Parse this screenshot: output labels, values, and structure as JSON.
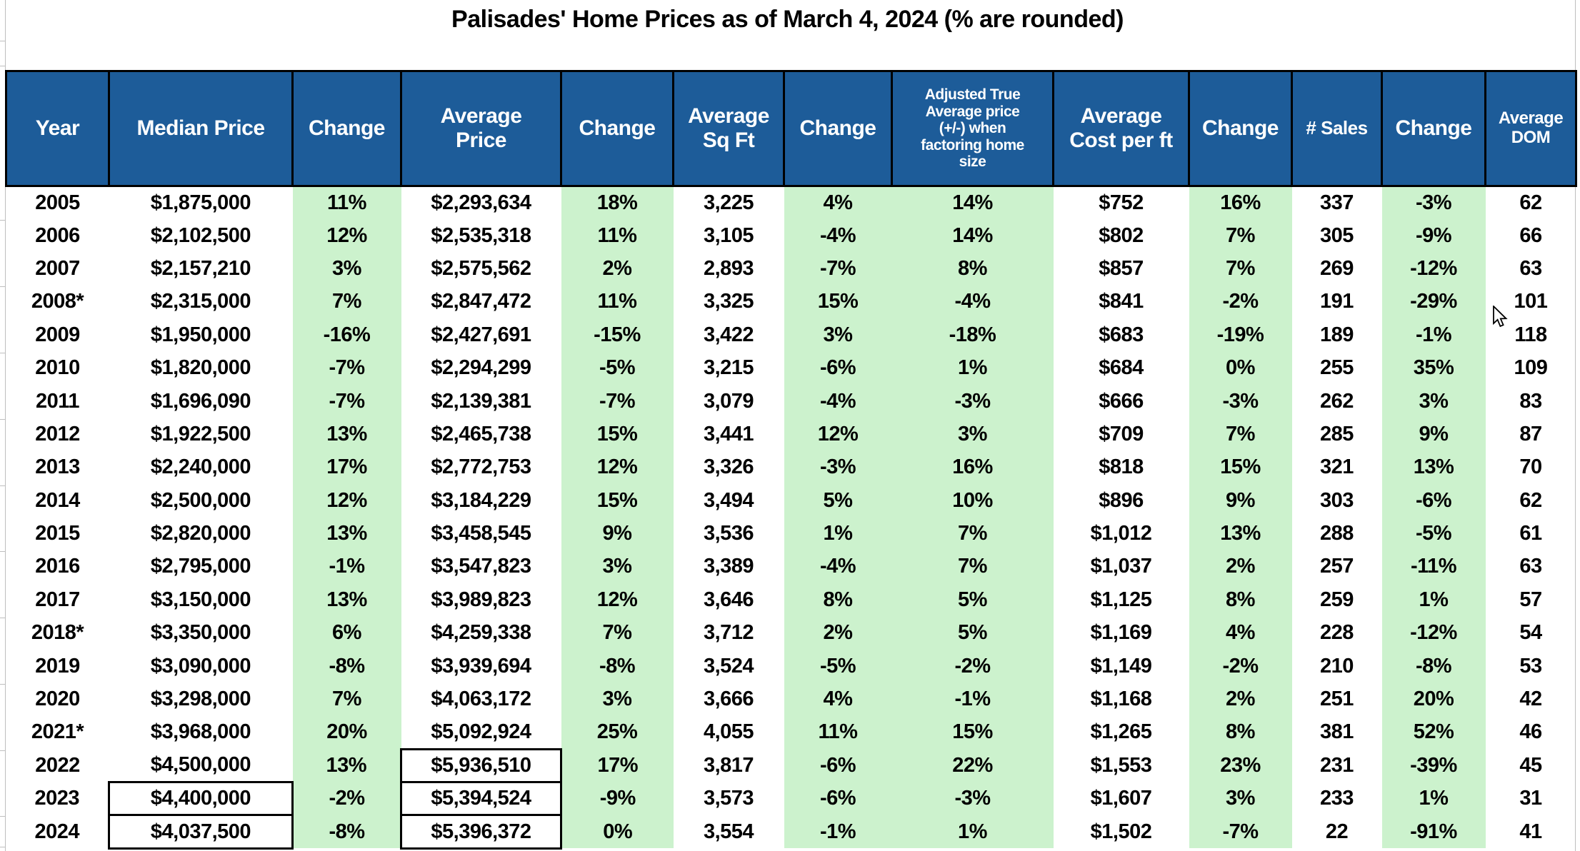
{
  "title": "Palisades' Home Prices as of March 4, 2024 (% are rounded)",
  "colors": {
    "header_bg": "#1d5c99",
    "header_text": "#ffffff",
    "accent_green": "#ccf2cd",
    "border": "#000000",
    "gridline": "#bfbfbf"
  },
  "table": {
    "columns": [
      {
        "label": "Year"
      },
      {
        "label": "Median Price"
      },
      {
        "label": "Change"
      },
      {
        "label": "Average\nPrice"
      },
      {
        "label": "Change"
      },
      {
        "label": "Average\nSq Ft"
      },
      {
        "label": "Change"
      },
      {
        "label": "Adjusted True\nAverage price\n(+/-) when\nfactoring home\nsize"
      },
      {
        "label": "Average\nCost per ft"
      },
      {
        "label": "Change"
      },
      {
        "label": "# Sales"
      },
      {
        "label": "Change"
      },
      {
        "label": "Average\nDOM"
      }
    ],
    "green_columns": [
      2,
      4,
      6,
      7,
      9,
      11
    ],
    "rows": [
      {
        "cells": [
          "2005",
          "$1,875,000",
          "11%",
          "$2,293,634",
          "18%",
          "3,225",
          "4%",
          "14%",
          "$752",
          "16%",
          "337",
          "-3%",
          "62"
        ],
        "boxed": []
      },
      {
        "cells": [
          "2006",
          "$2,102,500",
          "12%",
          "$2,535,318",
          "11%",
          "3,105",
          "-4%",
          "14%",
          "$802",
          "7%",
          "305",
          "-9%",
          "66"
        ],
        "boxed": []
      },
      {
        "cells": [
          "2007",
          "$2,157,210",
          "3%",
          "$2,575,562",
          "2%",
          "2,893",
          "-7%",
          "8%",
          "$857",
          "7%",
          "269",
          "-12%",
          "63"
        ],
        "boxed": []
      },
      {
        "cells": [
          "2008*",
          "$2,315,000",
          "7%",
          "$2,847,472",
          "11%",
          "3,325",
          "15%",
          "-4%",
          "$841",
          "-2%",
          "191",
          "-29%",
          "101"
        ],
        "boxed": []
      },
      {
        "cells": [
          "2009",
          "$1,950,000",
          "-16%",
          "$2,427,691",
          "-15%",
          "3,422",
          "3%",
          "-18%",
          "$683",
          "-19%",
          "189",
          "-1%",
          "118"
        ],
        "boxed": []
      },
      {
        "cells": [
          "2010",
          "$1,820,000",
          "-7%",
          "$2,294,299",
          "-5%",
          "3,215",
          "-6%",
          "1%",
          "$684",
          "0%",
          "255",
          "35%",
          "109"
        ],
        "boxed": []
      },
      {
        "cells": [
          "2011",
          "$1,696,090",
          "-7%",
          "$2,139,381",
          "-7%",
          "3,079",
          "-4%",
          "-3%",
          "$666",
          "-3%",
          "262",
          "3%",
          "83"
        ],
        "boxed": []
      },
      {
        "cells": [
          "2012",
          "$1,922,500",
          "13%",
          "$2,465,738",
          "15%",
          "3,441",
          "12%",
          "3%",
          "$709",
          "7%",
          "285",
          "9%",
          "87"
        ],
        "boxed": []
      },
      {
        "cells": [
          "2013",
          "$2,240,000",
          "17%",
          "$2,772,753",
          "12%",
          "3,326",
          "-3%",
          "16%",
          "$818",
          "15%",
          "321",
          "13%",
          "70"
        ],
        "boxed": []
      },
      {
        "cells": [
          "2014",
          "$2,500,000",
          "12%",
          "$3,184,229",
          "15%",
          "3,494",
          "5%",
          "10%",
          "$896",
          "9%",
          "303",
          "-6%",
          "62"
        ],
        "boxed": []
      },
      {
        "cells": [
          "2015",
          "$2,820,000",
          "13%",
          "$3,458,545",
          "9%",
          "3,536",
          "1%",
          "7%",
          "$1,012",
          "13%",
          "288",
          "-5%",
          "61"
        ],
        "boxed": []
      },
      {
        "cells": [
          "2016",
          "$2,795,000",
          "-1%",
          "$3,547,823",
          "3%",
          "3,389",
          "-4%",
          "7%",
          "$1,037",
          "2%",
          "257",
          "-11%",
          "63"
        ],
        "boxed": []
      },
      {
        "cells": [
          "2017",
          "$3,150,000",
          "13%",
          "$3,989,823",
          "12%",
          "3,646",
          "8%",
          "5%",
          "$1,125",
          "8%",
          "259",
          "1%",
          "57"
        ],
        "boxed": []
      },
      {
        "cells": [
          "2018*",
          "$3,350,000",
          "6%",
          "$4,259,338",
          "7%",
          "3,712",
          "2%",
          "5%",
          "$1,169",
          "4%",
          "228",
          "-12%",
          "54"
        ],
        "boxed": []
      },
      {
        "cells": [
          "2019",
          "$3,090,000",
          "-8%",
          "$3,939,694",
          "-8%",
          "3,524",
          "-5%",
          "-2%",
          "$1,149",
          "-2%",
          "210",
          "-8%",
          "53"
        ],
        "boxed": []
      },
      {
        "cells": [
          "2020",
          "$3,298,000",
          "7%",
          "$4,063,172",
          "3%",
          "3,666",
          "4%",
          "-1%",
          "$1,168",
          "2%",
          "251",
          "20%",
          "42"
        ],
        "boxed": []
      },
      {
        "cells": [
          "2021*",
          "$3,968,000",
          "20%",
          "$5,092,924",
          "25%",
          "4,055",
          "11%",
          "15%",
          "$1,265",
          "8%",
          "381",
          "52%",
          "46"
        ],
        "boxed": []
      },
      {
        "cells": [
          "2022",
          "$4,500,000",
          "13%",
          "$5,936,510",
          "17%",
          "3,817",
          "-6%",
          "22%",
          "$1,553",
          "23%",
          "231",
          "-39%",
          "45"
        ],
        "boxed": [
          3
        ]
      },
      {
        "cells": [
          "2023",
          "$4,400,000",
          "-2%",
          "$5,394,524",
          "-9%",
          "3,573",
          "-6%",
          "-3%",
          "$1,607",
          "3%",
          "233",
          "1%",
          "31"
        ],
        "boxed": [
          1,
          3
        ]
      },
      {
        "cells": [
          "2024",
          "$4,037,500",
          "-8%",
          "$5,396,372",
          "0%",
          "3,554",
          "-1%",
          "1%",
          "$1,502",
          "-7%",
          "22",
          "-91%",
          "41"
        ],
        "boxed": [
          1,
          3
        ]
      }
    ]
  }
}
